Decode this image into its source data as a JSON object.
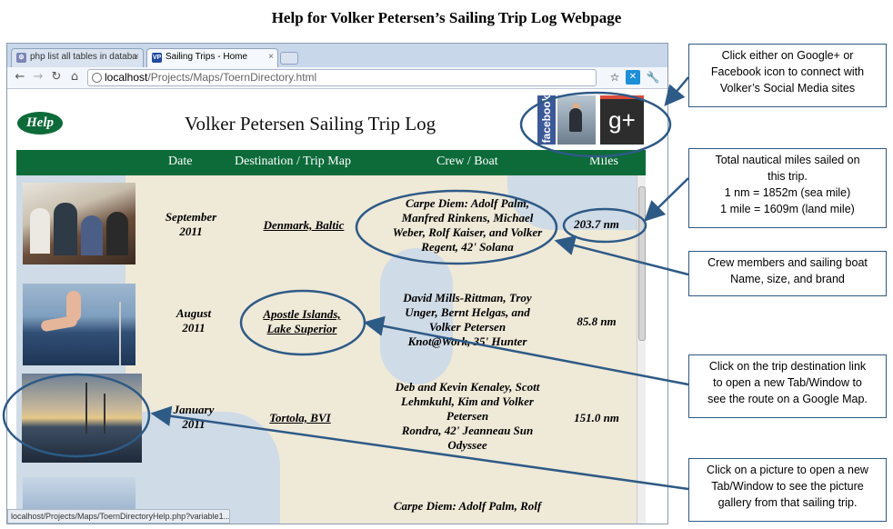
{
  "doc_title": "Help for Volker Petersen’s Sailing Trip Log Webpage",
  "browser": {
    "tabs": [
      {
        "label": "php list all tables in databa",
        "icon": "php-icon"
      },
      {
        "label": "Sailing Trips - Home",
        "icon": "vp-icon",
        "icon_text": "VP"
      }
    ],
    "url_host": "localhost",
    "url_path": "/Projects/Maps/ToernDirectory.html",
    "status": "localhost/Projects/Maps/ToernDirectoryHelp.php?variable1..."
  },
  "page": {
    "help_label": "Help",
    "title": "Volker Petersen Sailing Trip Log",
    "facebook_label": "facebook",
    "gplus_label": "g+",
    "headers": {
      "date": "Date",
      "destination": "Destination / Trip Map",
      "crew": "Crew / Boat",
      "miles": "Miles"
    },
    "rows": [
      {
        "date": [
          "September",
          "2011"
        ],
        "destination": [
          "Denmark, Baltic"
        ],
        "crew": [
          "Carpe Diem: Adolf Palm,",
          "Manfred Rinkens, Michael",
          "Weber, Rolf Kaiser, and Volker",
          "Regent, 42' Solana"
        ],
        "miles": "203.7 nm"
      },
      {
        "date": [
          "August",
          "2011"
        ],
        "destination": [
          "Apostle Islands,",
          "Lake Superior"
        ],
        "crew": [
          "David Mills-Rittman, Troy",
          "Unger, Bernt Helgas, and",
          "Volker Petersen",
          "Knot@Work, 35' Hunter"
        ],
        "miles": "85.8 nm"
      },
      {
        "date": [
          "January",
          "2011"
        ],
        "destination": [
          "Tortola, BVI"
        ],
        "crew": [
          "Deb and Kevin Kenaley, Scott",
          "Lehmkuhl, Kim and Volker",
          "Petersen",
          "Rondra, 42' Jeanneau Sun",
          "Odyssee"
        ],
        "miles": "151.0 nm"
      },
      {
        "crew": [
          "Carpe Diem: Adolf Palm, Rolf"
        ]
      }
    ]
  },
  "callouts": {
    "social": [
      "Click either on Google+ or",
      "Facebook icon to connect with",
      "Volker’s Social Media sites"
    ],
    "miles": [
      "Total nautical miles sailed on",
      "this trip.",
      "1 nm = 1852m (sea mile)",
      "1 mile = 1609m (land mile)"
    ],
    "crew": [
      "Crew members and sailing boat",
      "Name, size, and brand"
    ],
    "destination": [
      "Click on the trip destination link",
      "to open a new Tab/Window to",
      "see the route on a Google Map."
    ],
    "picture": [
      "Click on a picture to open a new",
      "Tab/Window to see the picture",
      "gallery from that sailing trip."
    ]
  },
  "colors": {
    "accent_green": "#0d6b3a",
    "annotation_blue": "#2e5a86",
    "facebook_blue": "#3b5998",
    "gplus_red": "#dd4b39"
  }
}
